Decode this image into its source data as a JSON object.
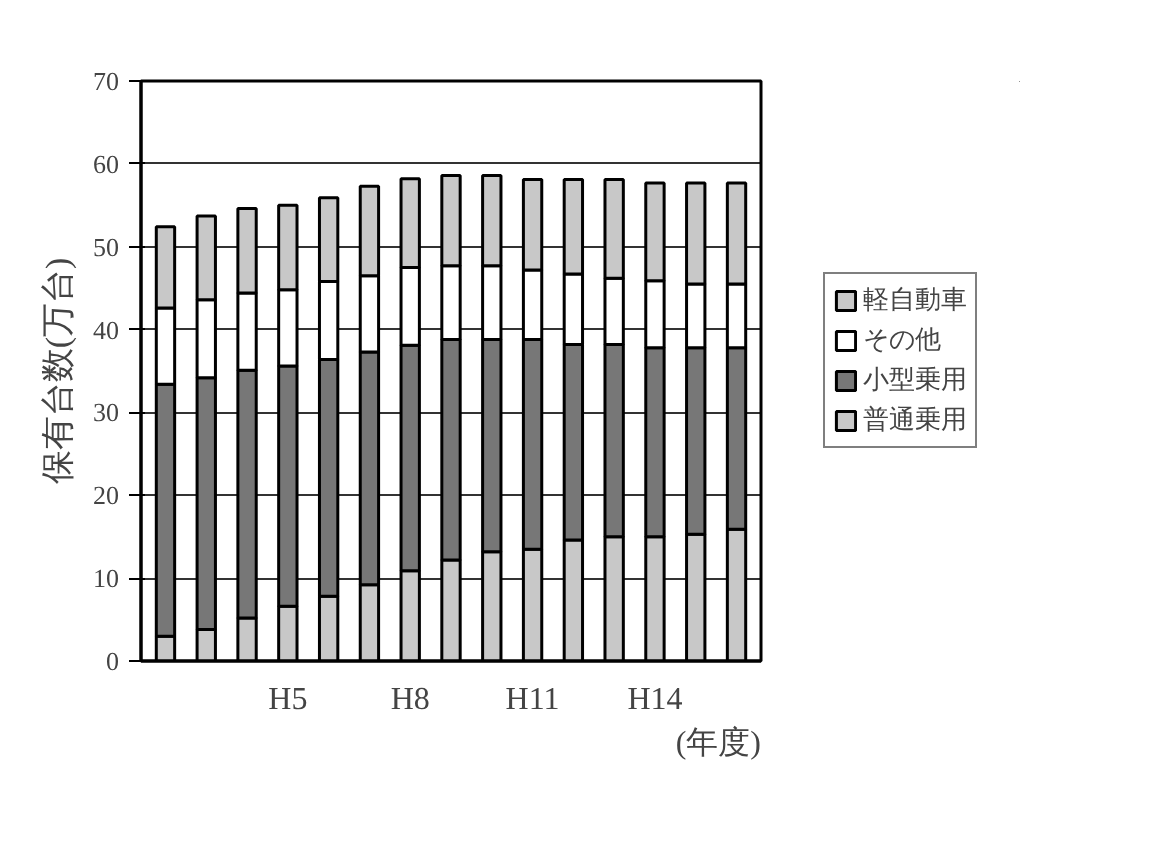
{
  "chart_data": {
    "type": "bar",
    "stacked": true,
    "ylabel": "保有台数(万台)",
    "xlabel": "(年度)",
    "categories": [
      null,
      null,
      null,
      "H5",
      null,
      null,
      "H8",
      null,
      null,
      "H11",
      null,
      null,
      "H14",
      null,
      null
    ],
    "series": [
      {
        "name": "普通乗用",
        "color": "#c8c8c8",
        "values": [
          3.0,
          3.8,
          5.2,
          6.6,
          7.8,
          9.2,
          10.9,
          12.2,
          13.2,
          13.5,
          14.6,
          15.0,
          15.0,
          15.3,
          15.9
        ]
      },
      {
        "name": "小型乗用",
        "color": "#777777",
        "values": [
          30.4,
          30.4,
          29.9,
          29.0,
          28.6,
          28.1,
          27.2,
          26.6,
          25.6,
          25.3,
          23.6,
          23.2,
          22.8,
          22.5,
          21.9
        ]
      },
      {
        "name": "その他",
        "color": "#ffffff",
        "values": [
          9.2,
          9.4,
          9.3,
          9.2,
          9.4,
          9.2,
          9.4,
          8.9,
          8.9,
          8.4,
          8.5,
          8.0,
          8.1,
          7.7,
          7.7
        ]
      },
      {
        "name": "軽自動車",
        "color": "#c8c8c8",
        "values": [
          9.8,
          10.1,
          10.2,
          10.2,
          10.1,
          10.8,
          10.7,
          10.9,
          10.9,
          10.9,
          11.4,
          11.9,
          11.8,
          12.2,
          12.2
        ]
      }
    ],
    "ylim": [
      0,
      70
    ],
    "yticks": [
      0,
      10,
      20,
      30,
      40,
      50,
      60,
      70
    ],
    "grid": "y",
    "legend": "right"
  }
}
